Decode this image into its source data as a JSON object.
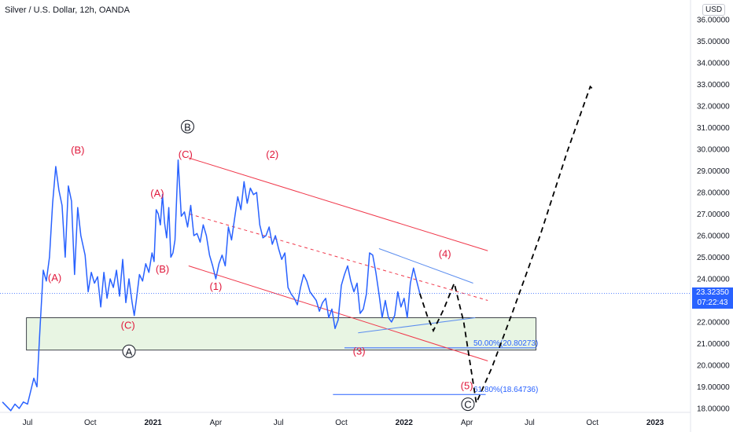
{
  "header": {
    "title": "Silver / U.S. Dollar, 12h, OANDA",
    "currency": "USD"
  },
  "price_tag": {
    "price": "23.32350",
    "countdown": "07:22:43"
  },
  "colors": {
    "price_line": "#2962ff",
    "wave_red": "#e0193c",
    "channel_red": "#f0374a",
    "support_fill": "#e8f5e3",
    "fib_line": "#2962ff",
    "projection": "#000000",
    "triangle_blue": "#5b8def"
  },
  "chart_data": {
    "type": "line",
    "title": "Silver / U.S. Dollar, 12h, OANDA",
    "xlabel": "",
    "ylabel": "",
    "ylim": [
      17.9,
      36.6
    ],
    "y_ticks": [
      "18.00000",
      "19.00000",
      "20.00000",
      "21.00000",
      "22.00000",
      "23.00000",
      "24.00000",
      "25.00000",
      "26.00000",
      "27.00000",
      "28.00000",
      "29.00000",
      "30.00000",
      "31.00000",
      "32.00000",
      "33.00000",
      "34.00000",
      "35.00000",
      "36.00000"
    ],
    "x_ticks": [
      {
        "label": "Jul",
        "t": 0
      },
      {
        "label": "Oct",
        "t": 3
      },
      {
        "label": "2021",
        "t": 6,
        "bold": true
      },
      {
        "label": "Apr",
        "t": 9
      },
      {
        "label": "Jul",
        "t": 12
      },
      {
        "label": "Oct",
        "t": 15
      },
      {
        "label": "2022",
        "t": 18,
        "bold": true
      },
      {
        "label": "Apr",
        "t": 21
      },
      {
        "label": "Jul",
        "t": 24
      },
      {
        "label": "Oct",
        "t": 27
      },
      {
        "label": "2023",
        "t": 30,
        "bold": true
      }
    ],
    "series": [
      {
        "x": [
          -1.2,
          -1.0,
          -0.8,
          -0.6,
          -0.4,
          -0.2,
          0.0,
          0.15,
          0.3,
          0.45,
          0.6,
          0.75,
          0.9,
          1.05,
          1.2,
          1.35,
          1.5,
          1.65,
          1.8,
          1.95,
          2.1,
          2.25,
          2.4,
          2.55,
          2.75,
          2.9,
          3.05,
          3.2,
          3.35,
          3.5,
          3.65,
          3.8,
          3.95,
          4.1,
          4.25,
          4.4,
          4.55,
          4.7,
          4.85,
          5.0,
          5.1,
          5.2,
          5.35,
          5.5,
          5.65,
          5.8,
          5.95,
          6.05,
          6.15,
          6.25,
          6.35,
          6.45,
          6.55,
          6.65,
          6.75,
          6.85,
          6.95,
          7.05,
          7.2,
          7.35,
          7.5,
          7.65,
          7.8,
          7.95,
          8.1,
          8.25,
          8.4,
          8.55,
          8.7,
          8.85,
          9.0,
          9.15,
          9.3,
          9.45,
          9.6,
          9.75,
          9.9,
          10.05,
          10.2,
          10.35,
          10.5,
          10.65,
          10.8,
          10.95,
          11.1,
          11.25,
          11.4,
          11.55,
          11.7,
          11.85,
          12.0,
          12.15,
          12.3,
          12.45,
          12.6,
          12.75,
          12.9,
          13.05,
          13.2,
          13.35,
          13.5,
          13.65,
          13.8,
          13.95,
          14.1,
          14.25,
          14.4,
          14.55,
          14.7,
          14.85,
          15.0,
          15.15,
          15.3,
          15.45,
          15.6,
          15.75,
          15.9,
          16.05,
          16.2,
          16.35,
          16.5,
          16.65,
          16.8,
          16.95,
          17.1,
          17.25,
          17.4,
          17.55,
          17.7,
          17.85,
          18.0,
          18.15,
          18.3,
          18.45,
          18.6,
          18.75
        ],
        "values": [
          18.3,
          18.1,
          17.9,
          18.2,
          18.0,
          18.3,
          18.2,
          18.8,
          19.4,
          19.0,
          21.8,
          24.4,
          23.9,
          25.0,
          27.5,
          29.2,
          28.1,
          27.4,
          25.0,
          28.3,
          27.6,
          24.2,
          27.3,
          26.0,
          25.1,
          23.4,
          24.3,
          23.8,
          24.1,
          22.7,
          24.3,
          23.1,
          24.0,
          23.6,
          24.4,
          23.2,
          24.9,
          22.9,
          24.0,
          22.9,
          22.3,
          23.0,
          24.2,
          23.9,
          24.7,
          24.3,
          25.2,
          24.8,
          27.2,
          27.0,
          26.5,
          27.9,
          26.6,
          25.9,
          27.3,
          25.0,
          25.2,
          25.8,
          29.5,
          26.9,
          27.1,
          26.4,
          27.4,
          26.0,
          26.1,
          25.7,
          26.5,
          26.0,
          25.1,
          24.6,
          24.0,
          24.7,
          25.1,
          24.6,
          26.4,
          25.8,
          26.8,
          27.8,
          27.2,
          28.5,
          27.5,
          28.2,
          27.9,
          28.0,
          26.5,
          25.9,
          26.0,
          26.4,
          25.6,
          26.0,
          25.4,
          24.9,
          25.2,
          23.6,
          23.3,
          23.1,
          22.8,
          23.6,
          24.2,
          23.9,
          23.4,
          23.2,
          23.0,
          22.5,
          22.9,
          23.1,
          22.2,
          22.6,
          21.7,
          22.1,
          23.7,
          24.2,
          24.6,
          23.9,
          23.4,
          23.8,
          22.4,
          22.6,
          23.3,
          25.2,
          25.1,
          24.3,
          23.3,
          22.2,
          23.0,
          22.2,
          22.0,
          22.3,
          23.4,
          22.7,
          23.1,
          22.2,
          23.8,
          24.5,
          23.9,
          23.32
        ]
      }
    ],
    "projection_path": [
      [
        18.75,
        23.32
      ],
      [
        19.1,
        22.3
      ],
      [
        19.4,
        21.6
      ],
      [
        19.9,
        22.6
      ],
      [
        20.4,
        23.8
      ],
      [
        20.85,
        22.0
      ],
      [
        21.45,
        18.25
      ],
      [
        22.2,
        19.9
      ],
      [
        23.2,
        22.5
      ],
      [
        24.5,
        26.0
      ],
      [
        25.8,
        29.9
      ],
      [
        26.9,
        32.9
      ],
      [
        27.1,
        32.7
      ]
    ],
    "support_zone": {
      "t0": -0.05,
      "t1": 24.3,
      "low": 20.7,
      "high": 22.2
    },
    "fib_levels": [
      {
        "label": "50.00%(20.80273)",
        "value": 20.80273,
        "t0": 15.15,
        "t1": 24.3
      },
      {
        "label": "61.80%(18.64736)",
        "value": 18.64736,
        "t0": 14.6,
        "t1": 21.9
      }
    ],
    "channel_lines": [
      {
        "style": "solid",
        "from": [
          7.7,
          29.6
        ],
        "to": [
          22.0,
          25.3
        ]
      },
      {
        "style": "dashed",
        "from": [
          7.75,
          27.0
        ],
        "to": [
          22.0,
          23.0
        ]
      },
      {
        "style": "solid",
        "from": [
          7.7,
          24.6
        ],
        "to": [
          22.0,
          20.2
        ]
      }
    ],
    "triangle_lines": [
      {
        "from": [
          16.8,
          25.4
        ],
        "to": [
          21.3,
          23.8
        ]
      },
      {
        "from": [
          15.8,
          21.5
        ],
        "to": [
          21.4,
          22.2
        ]
      }
    ],
    "wave_labels": [
      {
        "text": "(B)",
        "t": 2.4,
        "v": 29.8,
        "color": "red"
      },
      {
        "text": "(A)",
        "t": 1.3,
        "v": 23.9,
        "color": "red"
      },
      {
        "text": "(C)",
        "t": 4.8,
        "v": 21.7,
        "color": "red"
      },
      {
        "text": "(A)",
        "t": 6.2,
        "v": 27.8,
        "color": "red"
      },
      {
        "text": "(C)",
        "t": 7.55,
        "v": 29.6,
        "color": "red"
      },
      {
        "text": "(B)",
        "t": 6.45,
        "v": 24.3,
        "color": "red"
      },
      {
        "text": "(1)",
        "t": 9.0,
        "v": 23.5,
        "color": "red"
      },
      {
        "text": "(2)",
        "t": 11.7,
        "v": 29.6,
        "color": "red"
      },
      {
        "text": "(3)",
        "t": 15.85,
        "v": 20.5,
        "color": "red"
      },
      {
        "text": "(4)",
        "t": 19.95,
        "v": 25.0,
        "color": "red"
      },
      {
        "text": "(5)",
        "t": 21.0,
        "v": 18.9,
        "color": "red"
      },
      {
        "text": "B",
        "t": 7.65,
        "v": 30.9,
        "color": "black",
        "circled": true
      },
      {
        "text": "A",
        "t": 4.85,
        "v": 20.5,
        "color": "black",
        "circled": true
      },
      {
        "text": "C",
        "t": 21.05,
        "v": 18.05,
        "color": "black",
        "circled": true
      }
    ],
    "last_price": 23.3235
  }
}
